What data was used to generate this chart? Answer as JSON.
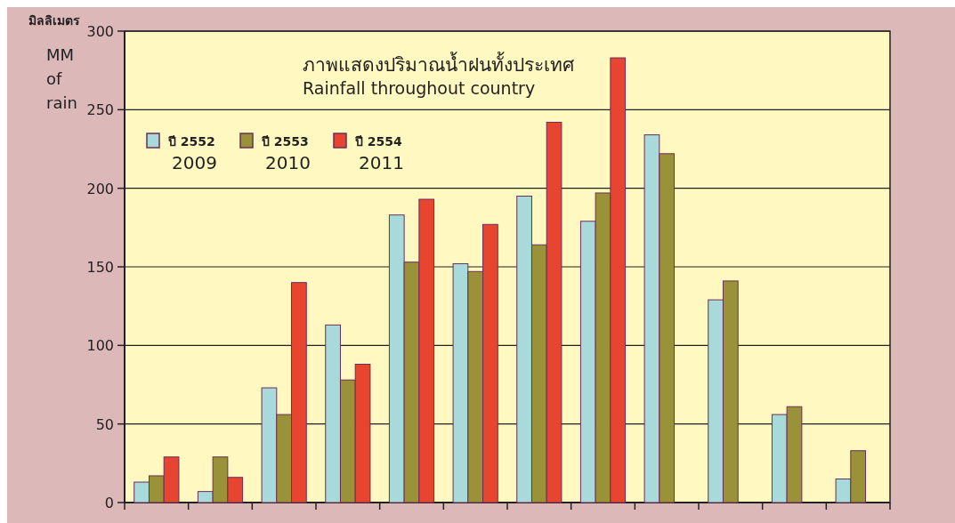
{
  "chart_data": {
    "type": "bar",
    "title": "ภาพแสดงปริมาณน้ำฝนทั้งประเทศ",
    "subtitle": "Rainfall throughout country",
    "ylabel": "MM of rain",
    "annotations": [
      "มิลลิเมตร"
    ],
    "categories": [
      null,
      null,
      null,
      null,
      null,
      null,
      null,
      null,
      null,
      null,
      null,
      null
    ],
    "series": [
      {
        "name": "ปี 2552\n2009",
        "color": "#a8dadc",
        "values": [
          13,
          7,
          73,
          113,
          183,
          152,
          195,
          179,
          234,
          129,
          56,
          15
        ]
      },
      {
        "name": "ปี 2553\n2010",
        "color": "#9a9238",
        "values": [
          17,
          29,
          56,
          78,
          153,
          147,
          164,
          197,
          222,
          141,
          61,
          33
        ]
      },
      {
        "name": "ปี 2554\n2011",
        "color": "#e84530",
        "values": [
          29,
          16,
          140,
          88,
          193,
          177,
          242,
          283,
          null,
          null,
          null,
          null
        ]
      }
    ],
    "ylim": [
      0,
      300
    ],
    "yticks": [
      0,
      50,
      100,
      150,
      200,
      250,
      300
    ],
    "grid": "y",
    "legend": "top left"
  }
}
